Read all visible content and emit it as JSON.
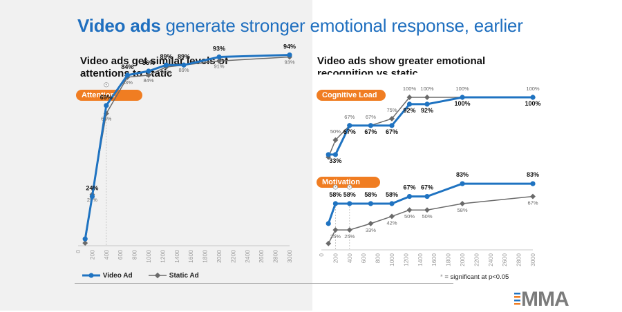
{
  "title": {
    "bold": "Video ads",
    "rest": " generate stronger emotional response, earlier"
  },
  "left": {
    "subtitle_line1": "Video ads get similar levels of",
    "subtitle_line2": "attentions to static"
  },
  "right": {
    "subtitle_line1": "Video ads show greater emotional",
    "subtitle_line2": "recognition vs static"
  },
  "legend": {
    "video": "Video Ad",
    "static": "Static Ad",
    "sig_note": "= significant at p<0.05",
    "sig_symbol": "*"
  },
  "logo": {
    "text": "MMA"
  },
  "colors": {
    "video": "#1f73c1",
    "static": "#6a6a6a",
    "pill": "#f07d22",
    "title": "#1f6fbf"
  },
  "chart_data": [
    {
      "type": "line",
      "title": "Attention",
      "x": [
        100,
        200,
        400,
        700,
        1000,
        1250,
        1500,
        2000,
        3000
      ],
      "x_ticks": [
        "0",
        "200",
        "400",
        "600",
        "800",
        "1000",
        "1200",
        "1400",
        "1600",
        "1800",
        "2000",
        "2200",
        "2400",
        "2600",
        "2800",
        "3000"
      ],
      "ylim": [
        0,
        100
      ],
      "series": [
        {
          "name": "Video Ad",
          "values": [
            3,
            24,
            69,
            84,
            86,
            89,
            89,
            93,
            94
          ],
          "labels": [
            "",
            "24%",
            "69%",
            "84%",
            "86%",
            "89%",
            "89%",
            "93%",
            "94%"
          ]
        },
        {
          "name": "Static Ad",
          "values": [
            1,
            25,
            65,
            83,
            84,
            88,
            89,
            91,
            93
          ],
          "labels": [
            "",
            "25%",
            "65%",
            "83%",
            "84%",
            "88%",
            "89%",
            "91%",
            "93%"
          ]
        }
      ],
      "significant_x": [
        400
      ]
    },
    {
      "type": "line",
      "title": "Cognitive Load",
      "x": [
        100,
        200,
        400,
        700,
        1000,
        1250,
        1500,
        2000,
        3000
      ],
      "x_ticks": [],
      "ylim": [
        20,
        100
      ],
      "series": [
        {
          "name": "Video Ad",
          "values": [
            33,
            33,
            67,
            67,
            67,
            92,
            92,
            100,
            100
          ],
          "labels": [
            "",
            "33%",
            "67%",
            "67%",
            "67%",
            "92%",
            "92%",
            "100%",
            "100%"
          ]
        },
        {
          "name": "Static Ad",
          "values": [
            30,
            50,
            67,
            67,
            75,
            100,
            100,
            100,
            100
          ],
          "labels": [
            "",
            "50%",
            "67%",
            "67%",
            "75%",
            "100%",
            "100%",
            "100%",
            "100%"
          ]
        }
      ]
    },
    {
      "type": "line",
      "title": "Motivation",
      "x": [
        100,
        200,
        400,
        700,
        1000,
        1250,
        1500,
        2000,
        3000
      ],
      "x_ticks": [
        "0",
        "200",
        "400",
        "600",
        "800",
        "1000",
        "1200",
        "1400",
        "1600",
        "1800",
        "2000",
        "2200",
        "2400",
        "2600",
        "2800",
        "3000"
      ],
      "ylim": [
        0,
        90
      ],
      "series": [
        {
          "name": "Video Ad",
          "values": [
            33,
            58,
            58,
            58,
            58,
            67,
            67,
            83,
            83
          ],
          "labels": [
            "",
            "58%",
            "58%",
            "58%",
            "58%",
            "67%",
            "67%",
            "83%",
            "83%"
          ]
        },
        {
          "name": "Static Ad",
          "values": [
            8,
            25,
            25,
            33,
            42,
            50,
            50,
            58,
            67
          ],
          "labels": [
            "",
            "25%",
            "25%",
            "33%",
            "42%",
            "50%",
            "50%",
            "58%",
            "67%"
          ]
        }
      ],
      "significant_x": [
        200,
        400
      ]
    }
  ]
}
